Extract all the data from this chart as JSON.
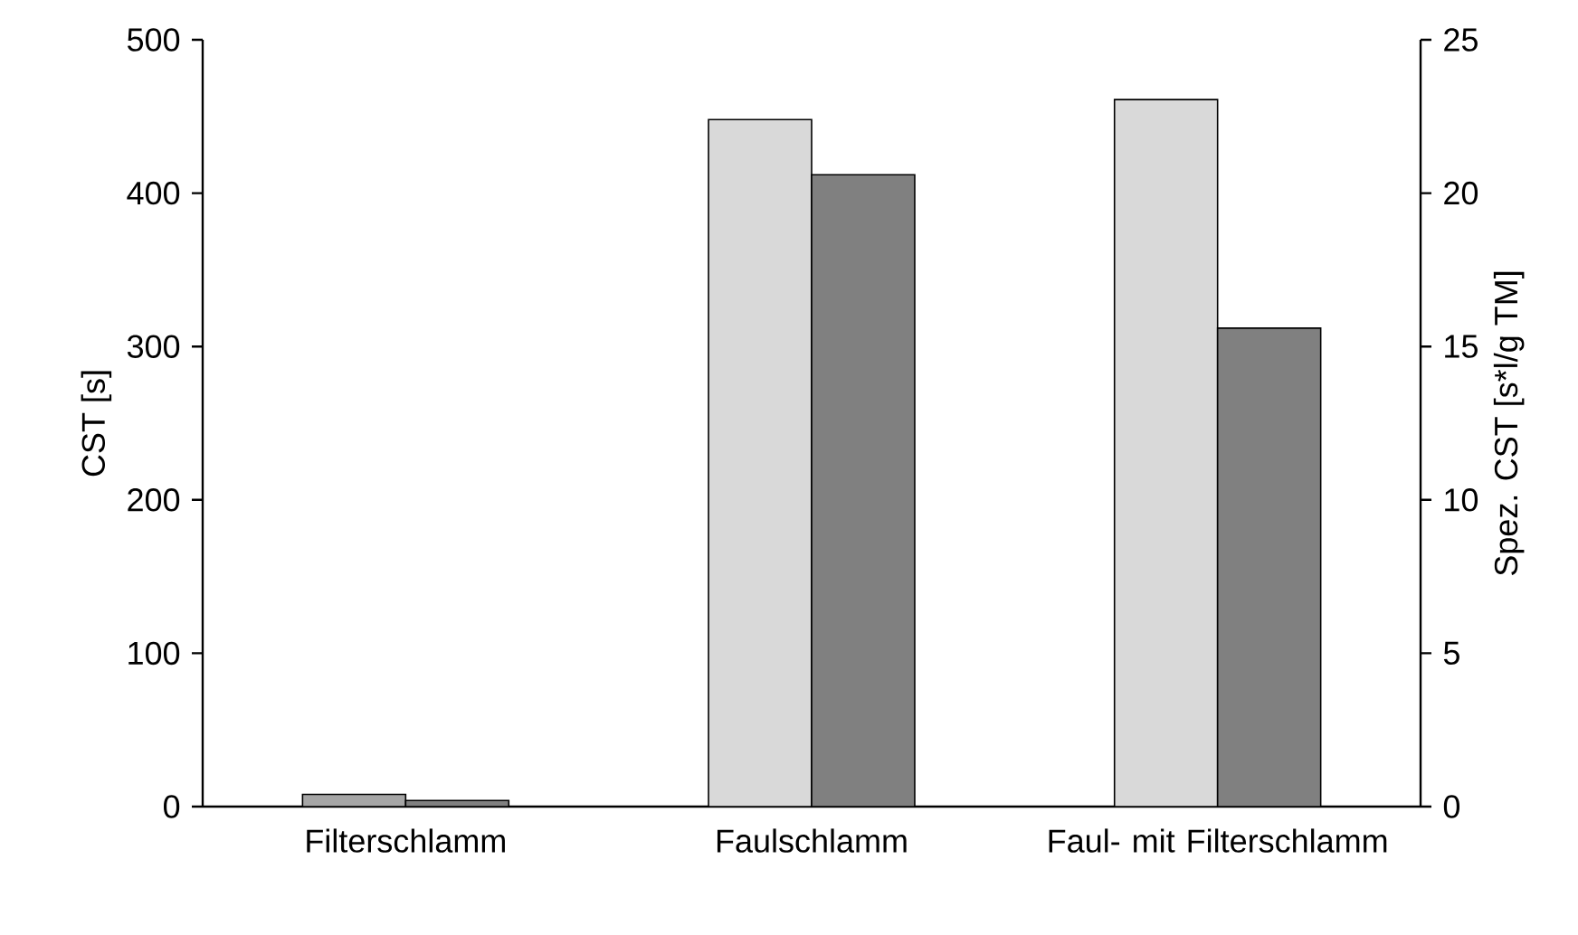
{
  "chart_data": {
    "type": "bar",
    "ylabel": "CST [s]",
    "y2label": "Spez. CST [s*l/g TM]",
    "categories": [
      "Filterschlamm",
      "Faulschlamm",
      "Faul- mit Filterschlamm"
    ],
    "series": [
      {
        "colors": [
          "#a6a6a6",
          "#d9d9d9",
          "#d9d9d9"
        ],
        "values": [
          8,
          448,
          461
        ]
      },
      {
        "color": "#808080",
        "axis": "y2",
        "values": [
          0.2,
          20.6,
          15.6
        ]
      }
    ],
    "ylim": [
      0,
      500
    ],
    "yticks": [
      0,
      100,
      200,
      300,
      400,
      500
    ],
    "y2lim": [
      0,
      25
    ],
    "y2ticks": [
      0,
      5,
      10,
      15,
      20,
      25
    ]
  }
}
